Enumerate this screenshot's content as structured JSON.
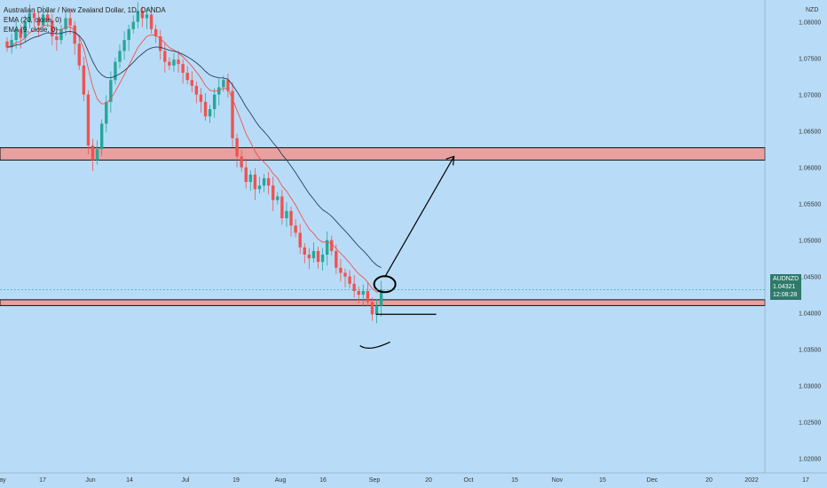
{
  "legend": {
    "title": "Australian Dollar / New Zealand Dollar, 1D, OANDA",
    "ema_slow": "EMA (20, close, 0)",
    "ema_fast": "EMA (9, close, 0)"
  },
  "price_axis": {
    "currency": "NZD",
    "labels": [
      "1.08000",
      "1.07500",
      "1.07000",
      "1.06500",
      "1.06000",
      "1.05500",
      "1.05000",
      "1.04500",
      "1.04000",
      "1.03500",
      "1.03000",
      "1.02500",
      "1.02000"
    ]
  },
  "badge": {
    "symbol": "AUDNZD",
    "price": "1.04321",
    "countdown": "12:08:28"
  },
  "colors": {
    "background": "#b8dcf7",
    "up_candle": "#26a69a",
    "down_candle": "#ef5350",
    "zone_fill": "#e8a0a0",
    "ema_fast": "#ef5350",
    "ema_slow": "#2a4060"
  },
  "chart_data": {
    "type": "candlestick",
    "y_range": [
      1.018,
      1.083
    ],
    "x_axis_labels": [
      "May",
      "17",
      "Jun",
      "14",
      "Jul",
      "19",
      "Aug",
      "16",
      "Sep",
      "20",
      "Oct",
      "15",
      "Nov",
      "15",
      "Dec",
      "20",
      "2022",
      "17"
    ],
    "resistance_zone": [
      1.061,
      1.0627
    ],
    "support_zone": [
      1.041,
      1.0418
    ],
    "last_price": 1.04321,
    "annotations": [
      "circle around last candles at EMA touch",
      "arrow projecting up to resistance zone near 1.0615"
    ],
    "close_path": [
      1.0765,
      1.0775,
      1.079,
      1.0778,
      1.08,
      1.0812,
      1.0805,
      1.0795,
      1.081,
      1.0802,
      1.078,
      1.0775,
      1.079,
      1.0805,
      1.0795,
      1.077,
      1.074,
      1.07,
      1.063,
      1.061,
      1.0625,
      1.066,
      1.069,
      1.072,
      1.0745,
      1.076,
      1.0775,
      1.079,
      1.08,
      1.0815,
      1.0805,
      1.081,
      1.079,
      1.078,
      1.076,
      1.0745,
      1.074,
      1.0748,
      1.0742,
      1.073,
      1.072,
      1.0712,
      1.07,
      1.069,
      1.067,
      1.068,
      1.07,
      1.071,
      1.072,
      1.0705,
      1.064,
      1.0615,
      1.06,
      1.058,
      1.059,
      1.057,
      1.0575,
      1.0585,
      1.0575,
      1.0555,
      1.056,
      1.053,
      1.054,
      1.052,
      1.051,
      1.049,
      1.048,
      1.0475,
      1.0485,
      1.047,
      1.048,
      1.05,
      1.0485,
      1.0462,
      1.0455,
      1.045,
      1.044,
      1.043,
      1.0425,
      1.043,
      1.0415,
      1.0398,
      1.041,
      1.0432
    ]
  }
}
